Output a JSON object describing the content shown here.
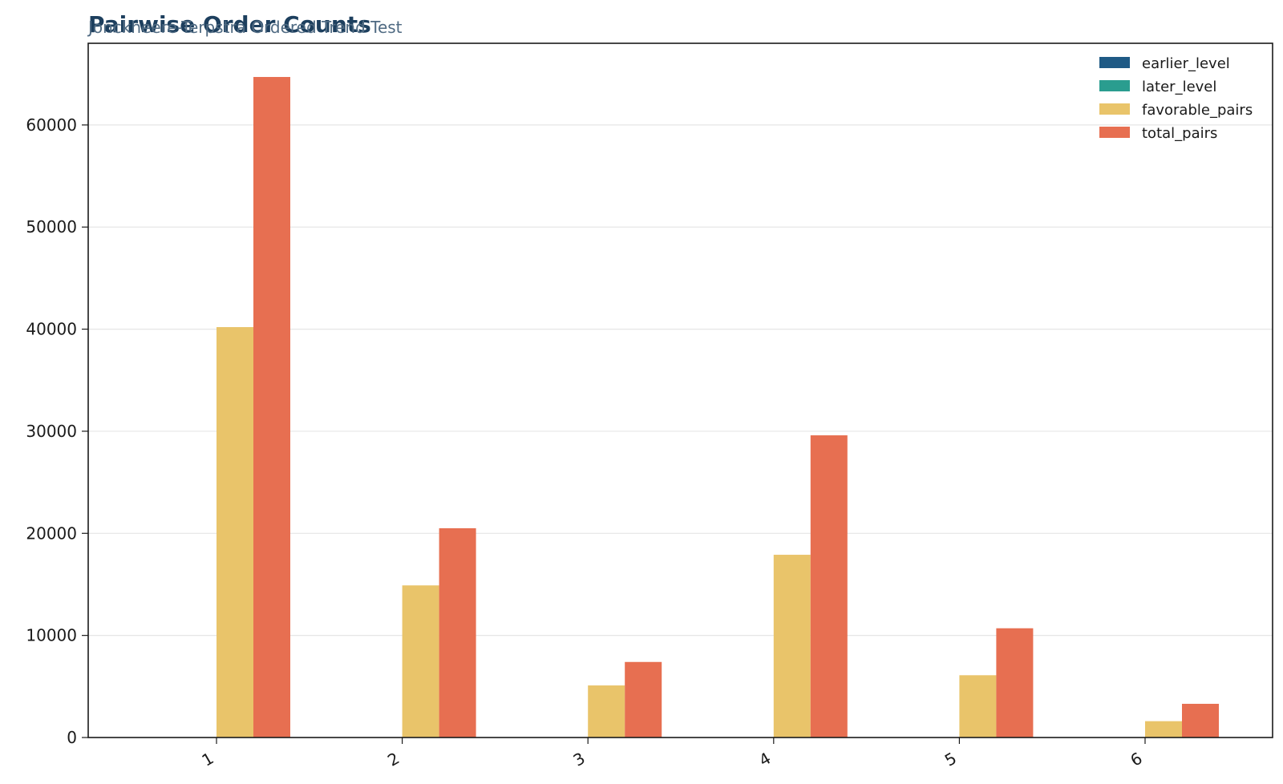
{
  "chart_data": {
    "type": "bar",
    "title": "Pairwise Order Counts",
    "subtitle": "Jonckheere-Terpstra Ordered Trend Test",
    "xlabel": "",
    "ylabel": "",
    "categories": [
      "1",
      "2",
      "3",
      "4",
      "5",
      "6"
    ],
    "ylim": [
      0,
      68000
    ],
    "yticks": [
      0,
      10000,
      20000,
      30000,
      40000,
      50000,
      60000
    ],
    "grid": "horizontal",
    "legend_position": "top-right",
    "series": [
      {
        "name": "earlier_level",
        "color": "#1f5a85",
        "values": [
          0,
          0,
          0,
          0,
          0,
          0
        ]
      },
      {
        "name": "later_level",
        "color": "#2a9d8f",
        "values": [
          0,
          0,
          0,
          0,
          0,
          0
        ]
      },
      {
        "name": "favorable_pairs",
        "color": "#e9c46a",
        "values": [
          40200,
          14900,
          5100,
          17900,
          6100,
          1600
        ]
      },
      {
        "name": "total_pairs",
        "color": "#e76f51",
        "values": [
          64700,
          20500,
          7400,
          29600,
          10700,
          3300
        ]
      }
    ]
  }
}
